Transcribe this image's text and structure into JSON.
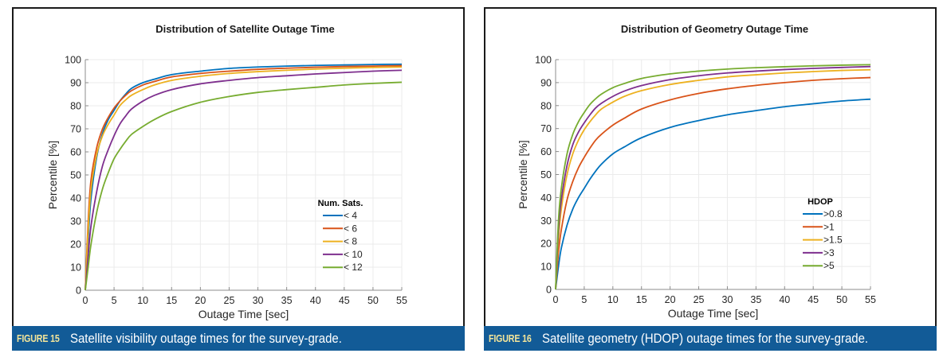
{
  "figures": [
    {
      "caption": {
        "label": "FIGURE 15",
        "text": "Satellite visibility outage times for the survey-grade."
      },
      "chart_data": {
        "type": "line",
        "title": "Distribution of Satellite Outage Time",
        "xlabel": "Outage Time [sec]",
        "ylabel": "Percentile [%]",
        "xlim": [
          0,
          55
        ],
        "ylim": [
          0,
          100
        ],
        "xticks": [
          "0",
          "5",
          "10",
          "15",
          "20",
          "25",
          "30",
          "35",
          "40",
          "45",
          "50",
          "55"
        ],
        "yticks": [
          "0",
          "10",
          "20",
          "30",
          "40",
          "50",
          "60",
          "70",
          "80",
          "90",
          "100"
        ],
        "grid": true,
        "legend": {
          "title": "Num. Sats.",
          "position": "lower-right"
        },
        "x": [
          0,
          0.5,
          1,
          2,
          3,
          4,
          5,
          6,
          7,
          8,
          10,
          12,
          15,
          20,
          25,
          30,
          35,
          40,
          45,
          50,
          55
        ],
        "series": [
          {
            "name": "< 4",
            "color": "#0072bd",
            "values": [
              0,
              22,
              40,
              58,
              68,
              74,
              78,
              82,
              85,
              87.5,
              90,
              91.5,
              93.5,
              95,
              96.2,
              96.8,
              97.2,
              97.5,
              97.7,
              97.9,
              98
            ]
          },
          {
            "name": "< 6",
            "color": "#d95319",
            "values": [
              0,
              30,
              48,
              62,
              70,
              75,
              79,
              82,
              84.5,
              86.5,
              89,
              90.5,
              92.5,
              94,
              95,
              95.8,
              96.3,
              96.7,
              97,
              97.2,
              97.4
            ]
          },
          {
            "name": "< 8",
            "color": "#edb120",
            "values": [
              0,
              26,
              44,
              59,
              67,
              72,
              76,
              80,
              82.5,
              84.5,
              87,
              89,
              91,
              92.8,
              94,
              94.8,
              95.4,
              95.9,
              96.3,
              96.6,
              96.8
            ]
          },
          {
            "name": "< 10",
            "color": "#7e2f8e",
            "values": [
              0,
              15,
              28,
              43,
              54,
              61,
              67,
              72,
              75.5,
              78.5,
              82,
              84.5,
              87,
              89.5,
              91,
              92.2,
              93,
              93.8,
              94.4,
              95,
              95.4
            ]
          },
          {
            "name": "< 12",
            "color": "#77ac30",
            "values": [
              0,
              10,
              20,
              34,
              44,
              51,
              57,
              61,
              64.5,
              67.5,
              71,
              74,
              77.5,
              81.5,
              84,
              85.8,
              87,
              88,
              89,
              89.7,
              90.2
            ]
          }
        ]
      }
    },
    {
      "caption": {
        "label": "FIGURE 16",
        "text": "Satellite geometry (HDOP) outage times for the survey-grade."
      },
      "chart_data": {
        "type": "line",
        "title": "Distribution of Geometry Outage Time",
        "xlabel": "Outage Time [sec]",
        "ylabel": "Percentile [%]",
        "xlim": [
          0,
          55
        ],
        "ylim": [
          0,
          100
        ],
        "xticks": [
          "0",
          "5",
          "10",
          "15",
          "20",
          "25",
          "30",
          "35",
          "40",
          "45",
          "50",
          "55"
        ],
        "yticks": [
          "0",
          "10",
          "20",
          "30",
          "40",
          "50",
          "60",
          "70",
          "80",
          "90",
          "100"
        ],
        "grid": true,
        "legend": {
          "title": "HDOP",
          "position": "lower-right"
        },
        "x": [
          0,
          0.5,
          1,
          2,
          3,
          4,
          5,
          6,
          7,
          8,
          10,
          12,
          15,
          20,
          25,
          30,
          35,
          40,
          45,
          50,
          55
        ],
        "series": [
          {
            "name": ">0.8",
            "color": "#0072bd",
            "values": [
              0,
              10,
              18,
              28,
              35,
              40,
              44,
              48,
              51.5,
              54.5,
              59,
              62,
              66,
              70.5,
              73.5,
              76,
              77.8,
              79.5,
              80.8,
              82,
              82.8
            ]
          },
          {
            "name": ">1",
            "color": "#d95319",
            "values": [
              0,
              16,
              26,
              39,
              47,
              53,
              57.5,
              61.5,
              65,
              67.5,
              71.5,
              74.5,
              78.5,
              82.5,
              85.3,
              87.3,
              88.8,
              90,
              91,
              91.7,
              92.2
            ]
          },
          {
            "name": ">1.5",
            "color": "#edb120",
            "values": [
              0,
              22,
              35,
              50,
              59,
              65,
              69.5,
              73,
              76,
              78.5,
              81.5,
              84,
              86.5,
              89.2,
              91,
              92.5,
              93.4,
              94.2,
              94.8,
              95.3,
              95.6
            ]
          },
          {
            "name": ">3",
            "color": "#7e2f8e",
            "values": [
              0,
              26,
              39,
              54,
              63,
              68.5,
              72.5,
              76,
              79,
              81,
              84,
              86.3,
              88.7,
              91.3,
              93,
              94.2,
              95,
              95.7,
              96.2,
              96.6,
              97
            ]
          },
          {
            "name": ">5",
            "color": "#77ac30",
            "values": [
              0,
              30,
              44,
              59,
              67.5,
              73,
              77,
              80.5,
              83,
              85,
              87.8,
              89.6,
              91.8,
              93.8,
              95,
              95.9,
              96.5,
              96.9,
              97.3,
              97.6,
              97.8
            ]
          }
        ]
      }
    }
  ]
}
